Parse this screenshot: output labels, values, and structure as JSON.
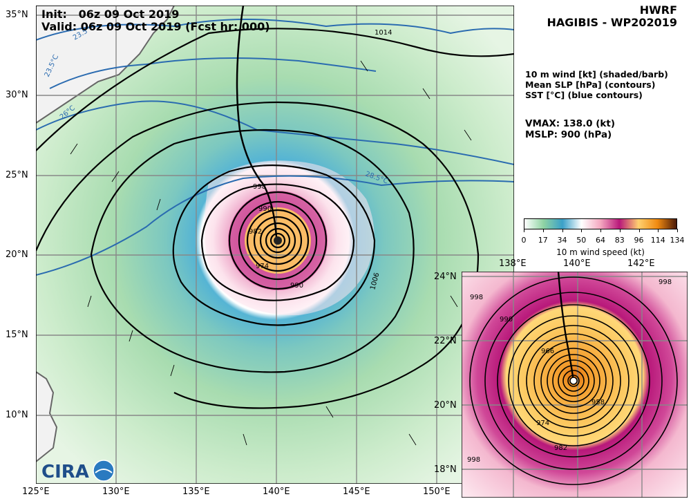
{
  "header": {
    "init_label": "Init:",
    "init_value": "06z 09 Oct 2019",
    "valid_line": "Valid: 06z 09 Oct 2019 (Fcst hr: 000)",
    "model": "HWRF",
    "storm": "HAGIBIS - WP202019"
  },
  "legend_text": {
    "line1": "10 m wind [kt] (shaded/barb)",
    "line2": "Mean SLP [hPa] (contours)",
    "line3": "SST [°C] (blue contours)"
  },
  "stats": {
    "vmax": "VMAX: 138.0 (kt)",
    "mslp": "MSLP:  900 (hPa)"
  },
  "colorbar": {
    "ticks": [
      "0",
      "17",
      "34",
      "50",
      "64",
      "83",
      "96",
      "114",
      "134"
    ],
    "label": "10 m wind speed (kt)",
    "colors": [
      "#ffffff",
      "#8fd3a3",
      "#3aa0c8",
      "#ffffff",
      "#f4a8c0",
      "#b8187a",
      "#ffd070",
      "#f08a10",
      "#4a1a08"
    ]
  },
  "main_map": {
    "lat_labels": [
      "35°N",
      "30°N",
      "25°N",
      "20°N",
      "15°N",
      "10°N"
    ],
    "lon_labels": [
      "125°E",
      "130°E",
      "135°E",
      "140°E",
      "145°E",
      "150°E"
    ],
    "contour_labels": [
      "1014",
      "1006",
      "998",
      "990",
      "982",
      "974",
      "990"
    ],
    "sst_labels": [
      "23.5°C",
      "23.5°C",
      "26°C",
      "28.5°C"
    ]
  },
  "inset_map": {
    "lat_labels": [
      "24°N",
      "22°N",
      "20°N",
      "18°N"
    ],
    "lon_labels": [
      "138°E",
      "140°E",
      "142°E"
    ],
    "contour_labels": [
      "998",
      "998",
      "990",
      "966",
      "958",
      "974",
      "982",
      "998"
    ]
  },
  "logo": {
    "text": "CIRA"
  }
}
